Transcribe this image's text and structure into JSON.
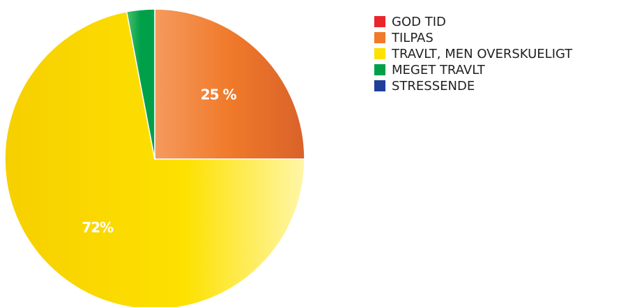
{
  "chart_data": {
    "type": "pie",
    "categories": [
      "GOD TID",
      "TILPAS",
      "TRAVLT, MEN OVERSKUELIGT",
      "MEGET TRAVLT",
      "STRESSENDE"
    ],
    "values": [
      0,
      25,
      72,
      3,
      0
    ],
    "value_labels": [
      null,
      "25 %",
      "72%",
      null,
      null
    ],
    "colors": [
      "#e8262b",
      "#f07a2a",
      "#fde100",
      "#00a04a",
      "#1f3f99"
    ],
    "legend": "right"
  }
}
